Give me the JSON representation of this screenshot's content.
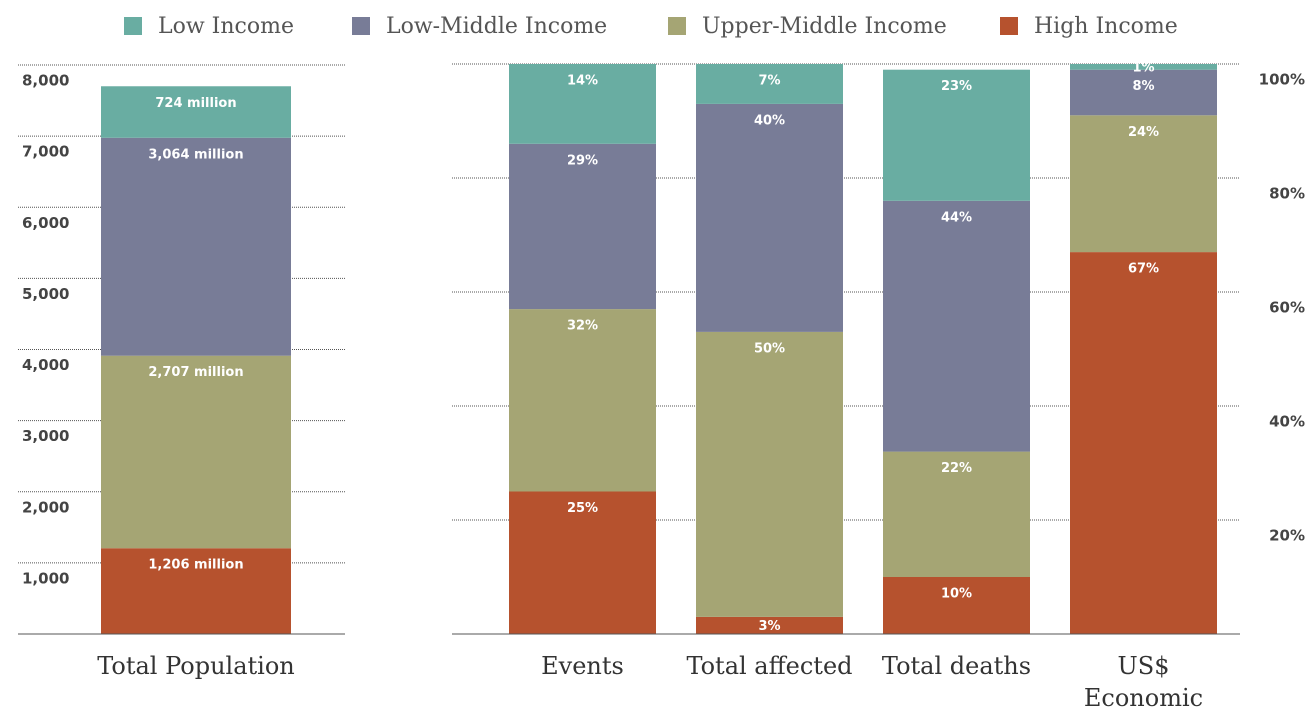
{
  "chart_data": [
    {
      "type": "bar",
      "stacked": true,
      "grid": true,
      "categories": [
        "Total Population"
      ],
      "series": [
        {
          "name": "Low Income",
          "color": "#69ada2",
          "values": [
            724
          ],
          "value_labels": [
            "724 million"
          ]
        },
        {
          "name": "Low-Middle Income",
          "color": "#787c97",
          "values": [
            3064
          ],
          "value_labels": [
            "3,064 million"
          ]
        },
        {
          "name": "Upper-Middle Income",
          "color": "#a5a574",
          "values": [
            2707
          ],
          "value_labels": [
            "2,707 million"
          ]
        },
        {
          "name": "High Income",
          "color": "#b6522e",
          "values": [
            1206
          ],
          "value_labels": [
            "1,206 million"
          ]
        }
      ],
      "ylim": [
        0,
        8000
      ],
      "yticks": [
        {
          "value": 1000,
          "label": "1,000"
        },
        {
          "value": 2000,
          "label": "2,000"
        },
        {
          "value": 3000,
          "label": "3,000"
        },
        {
          "value": 4000,
          "label": "4,000"
        },
        {
          "value": 5000,
          "label": "5,000"
        },
        {
          "value": 6000,
          "label": "6,000"
        },
        {
          "value": 7000,
          "label": "7,000"
        },
        {
          "value": 8000,
          "label": "8,000"
        }
      ]
    },
    {
      "type": "bar",
      "stacked": true,
      "grid": true,
      "categories": [
        "Events",
        "Total affected",
        "Total deaths",
        "US$ Economic losses"
      ],
      "series": [
        {
          "color": "#69ada2",
          "values": [
            14,
            7,
            23,
            1
          ],
          "value_labels": [
            "14%",
            "7%",
            "23%",
            "1%"
          ]
        },
        {
          "color": "#787c97",
          "values": [
            29,
            40,
            44,
            8
          ],
          "value_labels": [
            "29%",
            "40%",
            "44%",
            "8%"
          ]
        },
        {
          "color": "#a5a574",
          "values": [
            32,
            50,
            22,
            24
          ],
          "value_labels": [
            "32%",
            "50%",
            "22%",
            "24%"
          ]
        },
        {
          "color": "#b6522e",
          "values": [
            25,
            3,
            10,
            67
          ],
          "value_labels": [
            "25%",
            "3%",
            "10%",
            "67%"
          ]
        }
      ],
      "ylim": [
        0,
        100
      ],
      "yticks": [
        {
          "value": 20,
          "label": "20%"
        },
        {
          "value": 40,
          "label": "40%"
        },
        {
          "value": 60,
          "label": "60%"
        },
        {
          "value": 80,
          "label": "80%"
        },
        {
          "value": 100,
          "label": "100%"
        }
      ]
    }
  ]
}
